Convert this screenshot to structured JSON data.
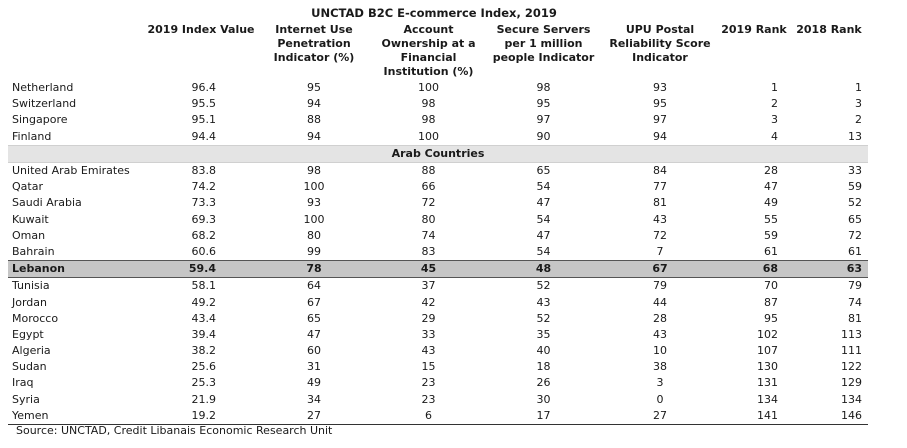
{
  "title": "UNCTAD B2C E-commerce Index, 2019",
  "headers": [
    "",
    "2019 Index Value",
    "Internet Use Penetration Indicator (%)",
    "Account Ownership at a Financial Institution (%)",
    "Secure Servers per 1 million people Indicator",
    "UPU Postal Reliability Score Indicator",
    "2019 Rank",
    "2018 Rank"
  ],
  "top_rows": [
    {
      "country": "Netherland",
      "index": "96.4",
      "internet": "95",
      "account": "100",
      "servers": "98",
      "postal": "93",
      "rank2019": "1",
      "rank2018": "1"
    },
    {
      "country": "Switzerland",
      "index": "95.5",
      "internet": "94",
      "account": "98",
      "servers": "95",
      "postal": "95",
      "rank2019": "2",
      "rank2018": "3"
    },
    {
      "country": "Singapore",
      "index": "95.1",
      "internet": "88",
      "account": "98",
      "servers": "97",
      "postal": "97",
      "rank2019": "3",
      "rank2018": "2"
    },
    {
      "country": "Finland",
      "index": "94.4",
      "internet": "94",
      "account": "100",
      "servers": "90",
      "postal": "94",
      "rank2019": "4",
      "rank2018": "13"
    }
  ],
  "section_label": "Arab Countries",
  "arab_rows": [
    {
      "country": "United Arab Emirates",
      "index": "83.8",
      "internet": "98",
      "account": "88",
      "servers": "65",
      "postal": "84",
      "rank2019": "28",
      "rank2018": "33"
    },
    {
      "country": "Qatar",
      "index": "74.2",
      "internet": "100",
      "account": "66",
      "servers": "54",
      "postal": "77",
      "rank2019": "47",
      "rank2018": "59"
    },
    {
      "country": "Saudi Arabia",
      "index": "73.3",
      "internet": "93",
      "account": "72",
      "servers": "47",
      "postal": "81",
      "rank2019": "49",
      "rank2018": "52"
    },
    {
      "country": "Kuwait",
      "index": "69.3",
      "internet": "100",
      "account": "80",
      "servers": "54",
      "postal": "43",
      "rank2019": "55",
      "rank2018": "65"
    },
    {
      "country": "Oman",
      "index": "68.2",
      "internet": "80",
      "account": "74",
      "servers": "47",
      "postal": "72",
      "rank2019": "59",
      "rank2018": "72"
    },
    {
      "country": "Bahrain",
      "index": "60.6",
      "internet": "99",
      "account": "83",
      "servers": "54",
      "postal": "7",
      "rank2019": "61",
      "rank2018": "61"
    },
    {
      "country": "Lebanon",
      "index": "59.4",
      "internet": "78",
      "account": "45",
      "servers": "48",
      "postal": "67",
      "rank2019": "68",
      "rank2018": "63",
      "highlight": true
    },
    {
      "country": "Tunisia",
      "index": "58.1",
      "internet": "64",
      "account": "37",
      "servers": "52",
      "postal": "79",
      "rank2019": "70",
      "rank2018": "79"
    },
    {
      "country": "Jordan",
      "index": "49.2",
      "internet": "67",
      "account": "42",
      "servers": "43",
      "postal": "44",
      "rank2019": "87",
      "rank2018": "74"
    },
    {
      "country": "Morocco",
      "index": "43.4",
      "internet": "65",
      "account": "29",
      "servers": "52",
      "postal": "28",
      "rank2019": "95",
      "rank2018": "81"
    },
    {
      "country": "Egypt",
      "index": "39.4",
      "internet": "47",
      "account": "33",
      "servers": "35",
      "postal": "43",
      "rank2019": "102",
      "rank2018": "113"
    },
    {
      "country": "Algeria",
      "index": "38.2",
      "internet": "60",
      "account": "43",
      "servers": "40",
      "postal": "10",
      "rank2019": "107",
      "rank2018": "111"
    },
    {
      "country": "Sudan",
      "index": "25.6",
      "internet": "31",
      "account": "15",
      "servers": "18",
      "postal": "38",
      "rank2019": "130",
      "rank2018": "122"
    },
    {
      "country": "Iraq",
      "index": "25.3",
      "internet": "49",
      "account": "23",
      "servers": "26",
      "postal": "3",
      "rank2019": "131",
      "rank2018": "129"
    },
    {
      "country": "Syria",
      "index": "21.9",
      "internet": "34",
      "account": "23",
      "servers": "30",
      "postal": "0",
      "rank2019": "134",
      "rank2018": "134"
    },
    {
      "country": "Yemen",
      "index": "19.2",
      "internet": "27",
      "account": "6",
      "servers": "17",
      "postal": "27",
      "rank2019": "141",
      "rank2018": "146"
    }
  ],
  "source": "Source: UNCTAD, Credit Libanais Economic Research Unit"
}
